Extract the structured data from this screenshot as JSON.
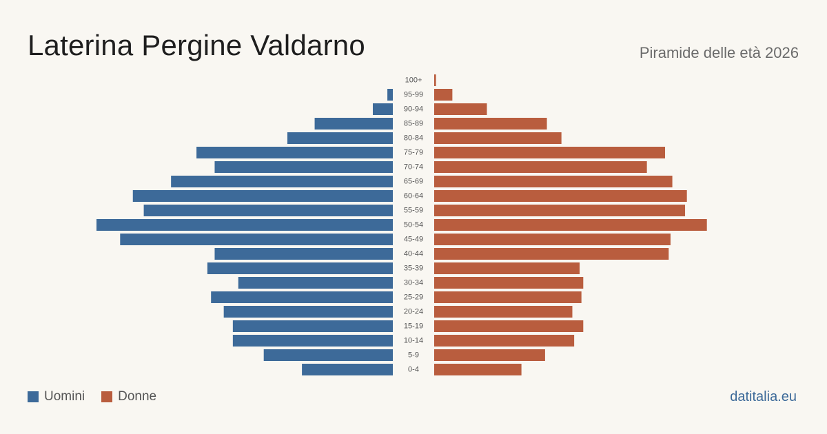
{
  "header": {
    "title": "Laterina Pergine Valdarno",
    "subtitle": "Piramide delle età 2026"
  },
  "legend": {
    "men_label": "Uomini",
    "women_label": "Donne"
  },
  "footer": {
    "source": "datitalia.eu"
  },
  "colors": {
    "men": "#3d6a99",
    "women": "#b95d3e",
    "background": "#f9f7f2",
    "tick_label": "#555555"
  },
  "chart_data": {
    "type": "bar",
    "orientation": "horizontal-population-pyramid",
    "title": "Laterina Pergine Valdarno",
    "subtitle": "Piramide delle età 2026",
    "categories": [
      "100+",
      "95-99",
      "90-94",
      "85-89",
      "80-84",
      "75-79",
      "70-74",
      "65-69",
      "60-64",
      "55-59",
      "50-54",
      "45-49",
      "40-44",
      "35-39",
      "30-34",
      "25-29",
      "20-24",
      "15-19",
      "10-14",
      "5-9",
      "0-4"
    ],
    "series": [
      {
        "name": "Uomini",
        "values": [
          0,
          3,
          11,
          43,
          58,
          108,
          98,
          122,
          143,
          137,
          163,
          150,
          98,
          102,
          85,
          100,
          93,
          88,
          88,
          71,
          50
        ]
      },
      {
        "name": "Donne",
        "values": [
          1,
          10,
          29,
          62,
          70,
          127,
          117,
          131,
          139,
          138,
          150,
          130,
          129,
          80,
          82,
          81,
          76,
          82,
          77,
          61,
          48
        ]
      }
    ],
    "max_value": 163,
    "legend_position": "bottom-left",
    "grid": false
  }
}
